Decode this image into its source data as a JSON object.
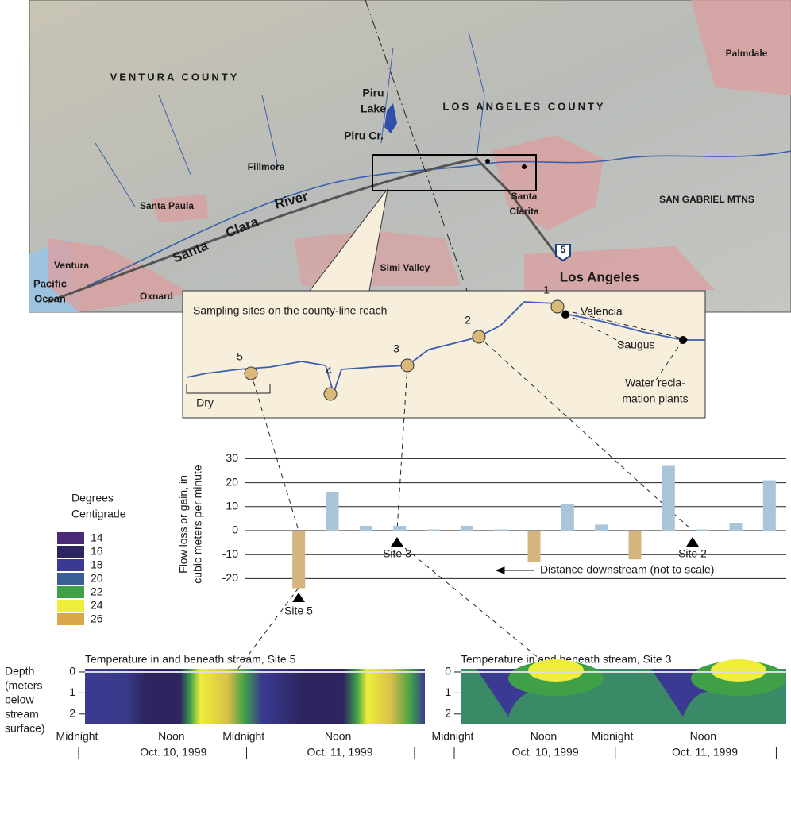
{
  "map": {
    "labels": [
      "VENTURA COUNTY",
      "Piru",
      "Lake",
      "Piru Cr.",
      "LOS ANGELES COUNTY",
      "Palmdale",
      "Fillmore",
      "Santa Paula",
      "Santa",
      "Clara",
      "River",
      "SAN GABRIEL MTNS",
      "Santa",
      "Clarita",
      "5",
      "Simi Valley",
      "Los Angeles",
      "Ventura",
      "Pacific",
      "Ocean",
      "Oxnard"
    ]
  },
  "inset": {
    "title": "Sampling sites on the county-line reach",
    "sites": [
      "5",
      "4",
      "3",
      "2",
      "1"
    ],
    "labels": [
      "Valencia",
      "Saugus",
      "Water recla-",
      "mation plants",
      "Dry"
    ]
  },
  "legend": {
    "title": [
      "Degrees",
      "Centigrade"
    ],
    "items": [
      {
        "label": "14",
        "color": "#4a2a78"
      },
      {
        "label": "16",
        "color": "#2d2560"
      },
      {
        "label": "18",
        "color": "#3b3a92"
      },
      {
        "label": "20",
        "color": "#3a5f96"
      },
      {
        "label": "22",
        "color": "#3fa048"
      },
      {
        "label": "24",
        "color": "#eeee3a"
      },
      {
        "label": "26",
        "color": "#d9a64a"
      }
    ]
  },
  "chart_data": [
    {
      "type": "bar",
      "y_label": [
        "Flow loss or gain, in",
        "cubic meters per minute"
      ],
      "values": [
        -24,
        16,
        2,
        2,
        0.5,
        2,
        0.5,
        -13,
        11,
        2.5,
        -12,
        27,
        0.5,
        3,
        21
      ],
      "colors": [
        "#d4b57e",
        "#aac5d8",
        "#aac5d8",
        "#aac5d8",
        "#aac5d8",
        "#aac5d8",
        "#aac5d8",
        "#d4b57e",
        "#aac5d8",
        "#aac5d8",
        "#d4b57e",
        "#aac5d8",
        "#aac5d8",
        "#aac5d8",
        "#aac5d8"
      ],
      "ylim": [
        -26,
        35
      ],
      "yticks": [
        30,
        20,
        10,
        0,
        -10,
        -20
      ],
      "grid": true,
      "annotations": [
        "Site 5",
        "Site 3",
        "Site 2",
        "Distance downstream (not to scale)"
      ]
    },
    {
      "type": "heatmap",
      "title": "Temperature in and beneath stream, Site 5",
      "y_label": [
        "Depth",
        "(meters",
        "below",
        "stream",
        "surface)"
      ],
      "yticks": [
        0,
        1,
        2
      ],
      "ylim": [
        -0.15,
        2.5
      ],
      "x_tick_labels": [
        "Midnight",
        "Noon",
        "Midnight",
        "Noon"
      ],
      "date_labels": [
        "Oct. 10, 1999",
        "Oct. 11, 1999"
      ]
    },
    {
      "type": "heatmap",
      "title": "Temperature in and beneath stream, Site 3",
      "yticks": [
        0,
        1,
        2
      ],
      "ylim": [
        -0.15,
        2.5
      ],
      "x_tick_labels": [
        "Midnight",
        "Noon",
        "Midnight",
        "Noon"
      ],
      "date_labels": [
        "Oct. 10, 1999",
        "Oct. 11, 1999"
      ]
    }
  ]
}
